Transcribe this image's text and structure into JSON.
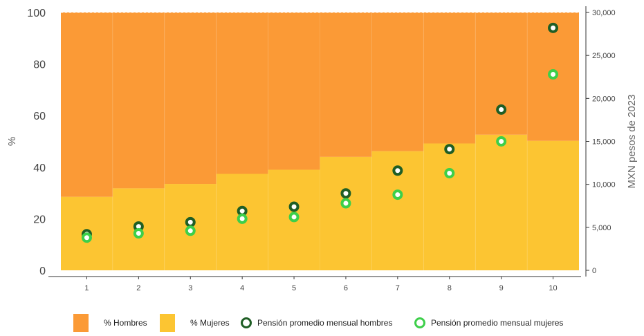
{
  "chart_data": {
    "type": "bar",
    "categories": [
      "1",
      "2",
      "3",
      "4",
      "5",
      "6",
      "7",
      "8",
      "9",
      "10"
    ],
    "series": [
      {
        "name": "% Hombres",
        "kind": "stacked-bar",
        "axis": "left",
        "color": "#fb9a36",
        "values": [
          71.5,
          68.2,
          66.5,
          62.6,
          61.0,
          56.0,
          53.8,
          50.8,
          47.4,
          49.8
        ]
      },
      {
        "name": "% Mujeres",
        "kind": "stacked-bar",
        "axis": "left",
        "color": "#fcc532",
        "values": [
          28.5,
          31.8,
          33.5,
          37.4,
          39.0,
          44.0,
          46.2,
          49.2,
          52.6,
          50.2
        ]
      },
      {
        "name": "Pensión promedio mensual hombres",
        "kind": "scatter",
        "axis": "right",
        "color": "#1f5e25",
        "values": [
          4200,
          5100,
          5600,
          6900,
          7400,
          8950,
          11600,
          14100,
          18700,
          28200
        ]
      },
      {
        "name": "Pensión promedio mensual mujeres",
        "kind": "scatter",
        "axis": "right",
        "color": "#3dcf4a",
        "values": [
          3800,
          4300,
          4600,
          6000,
          6200,
          7800,
          8800,
          11300,
          15000,
          22800
        ]
      }
    ],
    "xlabel": "",
    "ylabel": "%",
    "ylim": [
      0,
      100
    ],
    "yticks": [
      "0",
      "20",
      "40",
      "60",
      "80",
      "100"
    ],
    "y2label": "MXN pesos de 2023",
    "y2lim": [
      0,
      30000
    ],
    "y2ticks": [
      "0",
      "5,000",
      "10,000",
      "15,000",
      "20,000",
      "25,000",
      "30,000"
    ],
    "grid": false,
    "legend_position": "bottom"
  }
}
